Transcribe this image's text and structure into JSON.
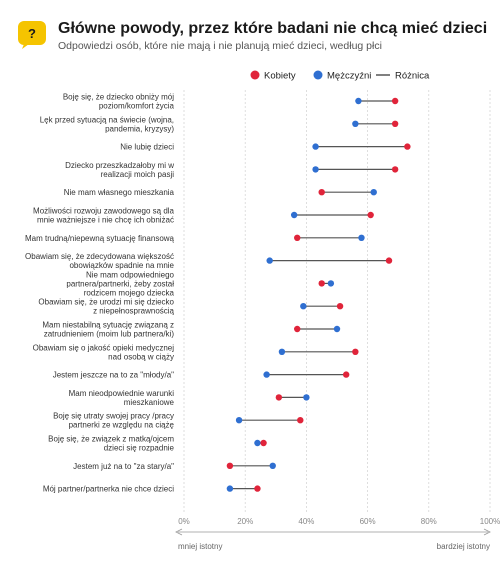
{
  "header": {
    "title": "Główne powody, przez które badani nie chcą mieć dzieci",
    "subtitle": "Odpowiedzi osób, które nie mają i nie planują mieć dzieci, według płci",
    "icon": "question-bubble-icon",
    "icon_color": "#f5c400"
  },
  "legend": {
    "women": "Kobiety",
    "men": "Mężczyźni",
    "diff": "Różnica"
  },
  "colors": {
    "women": "#e0243a",
    "men": "#2f6fd1",
    "diff_line": "#555555",
    "grid": "#d0d0d0"
  },
  "axis_notes": {
    "left": "mniej istotny",
    "right": "bardziej istotny"
  },
  "chart_data": {
    "type": "dumbbell",
    "xlim": [
      0,
      100
    ],
    "x_ticks": [
      "0%",
      "20%",
      "40%",
      "60%",
      "80%",
      "100%"
    ],
    "categories": [
      "Boję się, że dziecko obniży mój poziom/komfort życia",
      "Lęk przed sytuacją na świecie (wojna, pandemia, kryzysy)",
      "Nie lubię dzieci",
      "Dziecko przeszkadzałoby mi w realizacji moich pasji",
      "Nie mam własnego mieszkania",
      "Możliwości rozwoju zawodowego są dla mnie ważniejsze i nie chcę ich obniżać",
      "Mam trudną/niepewną sytuację finansową",
      "Obawiam się, że zdecydowana większość obowiązków spadnie na mnie",
      "Nie mam odpowiedniego partnera/partnerki, żeby został rodzicem mojego dziecka",
      "Obawiam się, że urodzi mi się dziecko z niepełnosprawnością",
      "Mam niestabilną sytuację związaną z zatrudnieniem (moim lub partnera/ki)",
      "Obawiam się o jakość opieki medycznej nad osobą w ciąży",
      "Jestem jeszcze na to za \"młody/a\"",
      "Mam nieodpowiednie warunki mieszkaniowe",
      "Boję się utraty swojej pracy /pracy partnerki ze względu na ciążę",
      "Boję się, że związek z matką/ojcem dzieci się rozpadnie",
      "Jestem już na to \"za stary/a\"",
      "Mój partner/partnerka nie chce dzieci"
    ],
    "series": [
      {
        "name": "Kobiety",
        "values": [
          69,
          69,
          73,
          69,
          45,
          61,
          37,
          67,
          45,
          51,
          37,
          56,
          53,
          31,
          38,
          26,
          15,
          24
        ]
      },
      {
        "name": "Mężczyźni",
        "values": [
          57,
          56,
          43,
          43,
          62,
          36,
          58,
          28,
          48,
          39,
          50,
          32,
          27,
          40,
          18,
          24,
          29,
          15
        ]
      }
    ]
  }
}
